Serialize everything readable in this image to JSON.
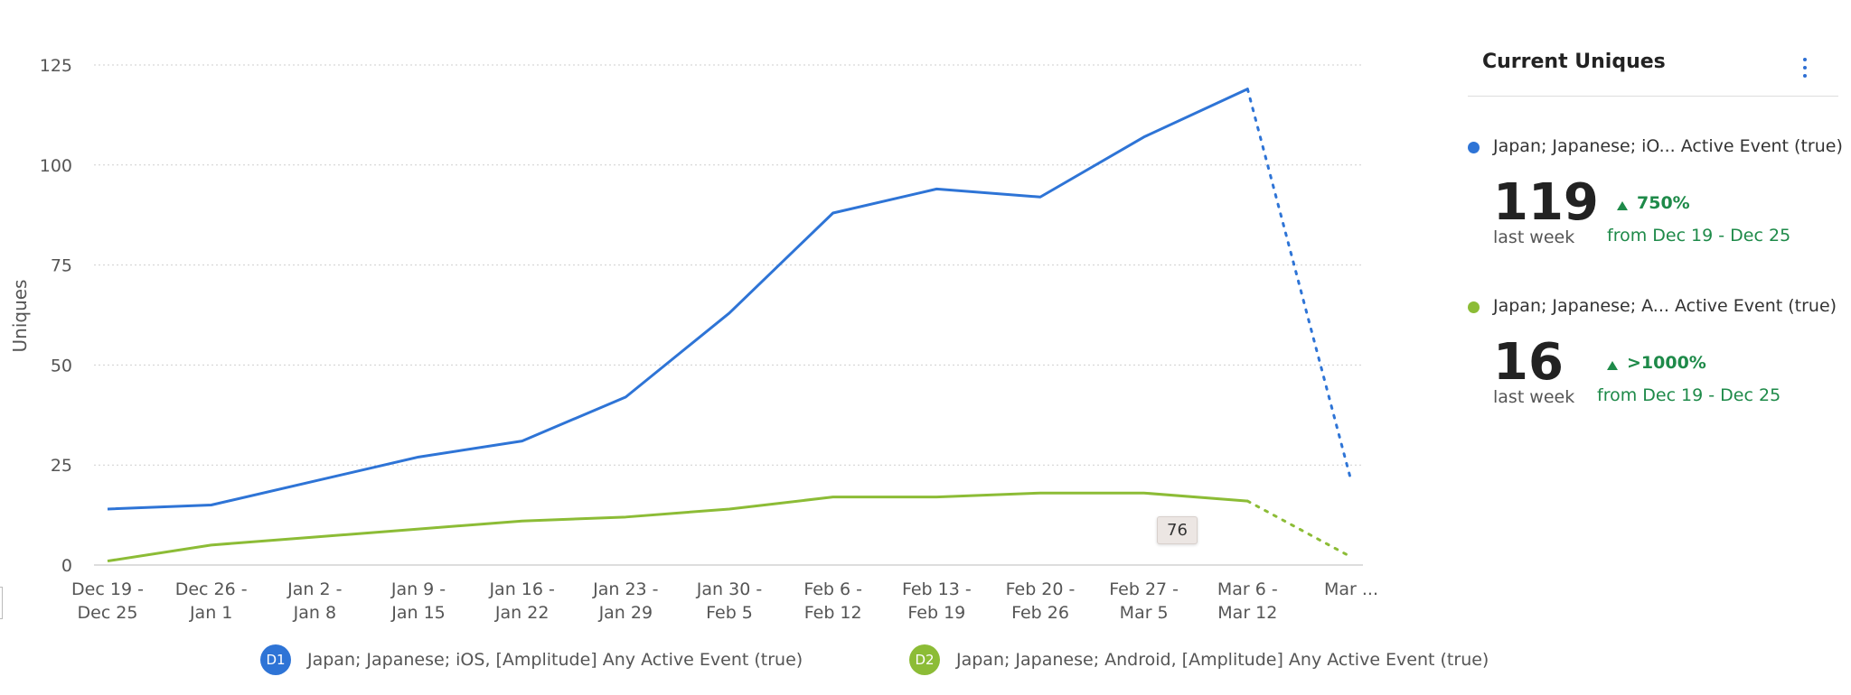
{
  "chart_data": {
    "type": "line",
    "ylabel": "Uniques",
    "xlabel": "",
    "ylim": [
      0,
      125
    ],
    "yticks": [
      0,
      25,
      50,
      75,
      100,
      125
    ],
    "grid": true,
    "categories": [
      [
        "Dec 19 -",
        "Dec 25"
      ],
      [
        "Dec 26 -",
        "Jan 1"
      ],
      [
        "Jan 2 -",
        "Jan 8"
      ],
      [
        "Jan 9 -",
        "Jan 15"
      ],
      [
        "Jan 16 -",
        "Jan 22"
      ],
      [
        "Jan 23 -",
        "Jan 29"
      ],
      [
        "Jan 30 -",
        "Feb 5"
      ],
      [
        "Feb 6 -",
        "Feb 12"
      ],
      [
        "Feb 13 -",
        "Feb 19"
      ],
      [
        "Feb 20 -",
        "Feb 26"
      ],
      [
        "Feb 27 -",
        "Mar 5"
      ],
      [
        "Mar 6 -",
        "Mar 12"
      ],
      [
        "Mar ...",
        ""
      ]
    ],
    "series": [
      {
        "name": "Japan; Japanese; iOS, [Amplitude] Any Active Event (true)",
        "color": "#2e74d6",
        "values": [
          14,
          15,
          21,
          27,
          31,
          42,
          63,
          88,
          94,
          92,
          107,
          119,
          21
        ],
        "incomplete_from_index": 11
      },
      {
        "name": "Japan; Japanese; Android, [Amplitude] Any Active Event (true)",
        "color": "#8cbc36",
        "values": [
          1,
          5,
          7,
          9,
          11,
          12,
          14,
          17,
          17,
          18,
          18,
          16,
          2
        ],
        "incomplete_from_index": 11
      }
    ]
  },
  "tooltip": {
    "value": "76"
  },
  "legend": [
    {
      "badge": "D1",
      "label": "Japan; Japanese; iOS, [Amplitude] Any Active Event (true)",
      "color": "#2e74d6"
    },
    {
      "badge": "D2",
      "label": "Japan; Japanese; Android, [Amplitude] Any Active Event (true)",
      "color": "#8cbc36"
    }
  ],
  "panel": {
    "title": "Current Uniques",
    "menu_icon": "kebab-menu-icon",
    "entries": [
      {
        "label": "Japan; Japanese; iO...  Active Event (true)",
        "color": "#2e74d6",
        "value": "119",
        "period": "last week",
        "change": "750%",
        "from": "from Dec 19 - Dec 25",
        "trend_icon": "triangle-up-icon"
      },
      {
        "label": "Japan; Japanese; A...  Active Event (true)",
        "color": "#8cbc36",
        "value": "16",
        "period": "last week",
        "change": ">1000%",
        "from": "from Dec 19 - Dec 25",
        "trend_icon": "triangle-up-icon"
      }
    ]
  }
}
